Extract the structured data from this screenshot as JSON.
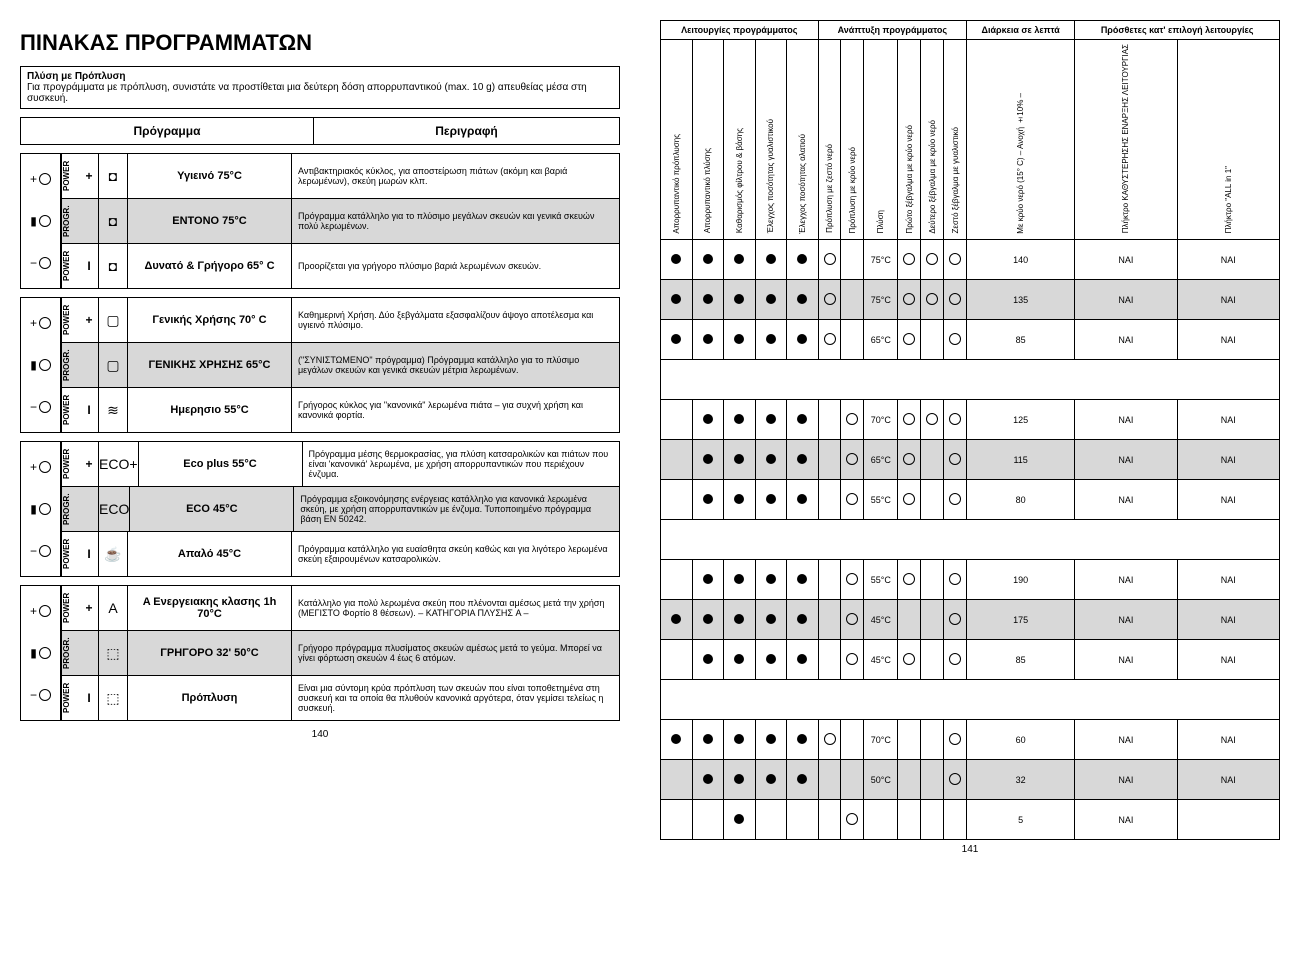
{
  "left": {
    "title": "ΠΙΝΑΚΑΣ  ΠΡΟΓΡΑΜΜΑΤΩΝ",
    "subtitle_bold": "Πλύση με Πρόπλυση",
    "subtitle_rest": "Για προγράμματα με πρόπλυση, συνιστάτε να προστίθεται μια δεύτερη δόση απορρυπαντικού (max. 10 g) απευθείας μέσα στη συσκευή.",
    "header_prog": "Πρόγραμμα",
    "header_desc": "Περιγραφή",
    "groups": [
      {
        "rows": [
          {
            "power": "POWER",
            "sym": "+",
            "icon": "◘",
            "name": "Υγιεινό 75°C",
            "desc": "Αντιβακτηριακός κύκλος, για αποστείρωση πιάτων (ακόμη και βαριά λερωμένων), σκεύη μωρών κλπ.",
            "gray": false
          },
          {
            "power": "PROGR.",
            "sym": "",
            "icon": "◘",
            "name": "ΕΝΤΟΝΟ 75°C",
            "desc": "Πρόγραμμα κατάλληλο για το πλύσιμο μεγάλων σκευών και γενικά σκευών πολύ λερωμένων.",
            "gray": true
          },
          {
            "power": "POWER",
            "sym": "I",
            "icon": "◘",
            "name": "Δυνατό & Γρήγορο 65° C",
            "desc": "Προορίζεται για γρήγορο πλύσιμο βαριά λερωμένων σκευών.",
            "gray": false
          }
        ]
      },
      {
        "rows": [
          {
            "power": "POWER",
            "sym": "+",
            "icon": "▢",
            "name": "Γενικής Χρήσης 70° C",
            "desc": "Καθημερινή Χρήση. Δύο ξεβγάλματα εξασφαλίζουν άψογο αποτέλεσμα και υγιεινό πλύσιμο.",
            "gray": false
          },
          {
            "power": "PROGR.",
            "sym": "",
            "icon": "▢",
            "name": "ΓΕΝΙΚΗΣ ΧΡΗΣΗΣ 65°C",
            "desc": "(\"ΣΥΝΙΣΤΩΜΕΝΟ\" πρόγραμμα) Πρόγραμμα κατάλληλο για το πλύσιμο μεγάλων σκευών και γενικά σκευών μέτρια λερωμένων.",
            "gray": true
          },
          {
            "power": "POWER",
            "sym": "I",
            "icon": "≋",
            "name": "Ημερησιο 55°C",
            "desc": "Γρήγορος κύκλος για \"κανονικά\" λερωμένα πιάτα – για συχνή χρήση και κανονικά φορτία.",
            "gray": false
          }
        ]
      },
      {
        "rows": [
          {
            "power": "POWER",
            "sym": "+",
            "icon": "ECO+",
            "name": "Eco plus 55°C",
            "desc": "Πρόγραμμα μέσης θερμοκρασίας, για πλύση κατσαρολικών και πιάτων που είναι 'κανονικά' λερωμένα, με χρήση απορρυπαντικών που περιέχουν ένζυμα.",
            "gray": false
          },
          {
            "power": "PROGR.",
            "sym": "",
            "icon": "ECO",
            "name": "ECO 45°C",
            "desc": "Πρόγραμμα εξοικονόμησης ενέργειας κατάλληλο για κανονικά λερωμένα σκεύη, με χρήση απορρυπαντικών με ένζυμα. Τυποποιημένο πρόγραμμα βάση EN 50242.",
            "gray": true
          },
          {
            "power": "POWER",
            "sym": "I",
            "icon": "☕",
            "name": "Απαλό 45°C",
            "desc": "Πρόγραμμα κατάλληλο για ευαίσθητα σκεύη καθώς και για λιγότερο λερωμένα σκεύη εξαιρουμένων κατσαρολικών.",
            "gray": false
          }
        ]
      },
      {
        "rows": [
          {
            "power": "POWER",
            "sym": "+",
            "icon": "A",
            "name": "A Ενεργειακης κλασης 1h 70°C",
            "desc": "Κατάλληλο για πολύ λερωμένα σκεύη που πλένονται αμέσως μετά την χρήση (ΜΕΓΙΣΤΟ Φορτίο 8 θέσεων). – ΚΑΤΗΓΟΡΙΑ ΠΛΥΣΗΣ A –",
            "gray": false
          },
          {
            "power": "PROGR.",
            "sym": "",
            "icon": "⬚",
            "name": "ΓΡΗΓΟΡΟ 32' 50°C",
            "desc": "Γρήγορο πρόγραμμα πλυσίματος σκευών αμέσως μετά το γεύμα. Μπορεί να γίνει φόρτωση σκευών 4 έως 6 ατόμων.",
            "gray": true
          },
          {
            "power": "POWER",
            "sym": "I",
            "icon": "⬚",
            "name": "Πρόπλυση",
            "desc": "Είναι μια σύντομη κρύα πρόπλυση των σκευών που είναι τοποθετημένα στη συσκευή και τα οποία θα πλυθούν κανονικά αργότερα, όταν γεμίσει τελείως η συσκευή.",
            "gray": false
          }
        ]
      }
    ],
    "page_num": "140"
  },
  "right": {
    "group_headers": {
      "g1": "Λειτουργίες προγράμματος",
      "g2": "Ανάπτυξη προγράμματος",
      "g3": "Διάρκεια σε λεπτά",
      "g4": "Πρόσθετες κατ' επιλογή λειτουργίες"
    },
    "col_headers": [
      "Απορρυπαντικό πρόπλυσης",
      "Απορρυπαντικό πλύσης",
      "Καθαρισμός φίλτρου & βάσης",
      "Έλεγχος ποσότητας γυαλιστικού",
      "Έλεγχος ποσότητας αλατιού",
      "Πρόπλυση με ζεστό νερό",
      "Πρόπλυση με κρύο νερό",
      "Πλύση",
      "Πρώτο ξέβγαλμα με κρύο νερό",
      "Δεύτερο ξέβγαλμα με κρύο νερό",
      "Ζεστό ξέβγαλμα με γυαλιστικό",
      "Με κρύο νερό (15° C) – Ανοχή ±10% –",
      "Πλήκτρο ΚΑΘΥΣΤΕΡΗΣΗΣ ΕΝΑΡΞΗΣ ΛΕΙΤΟΥΡΓΙΑΣ",
      "Πλήκτρο \"ALL in 1\""
    ],
    "data": [
      {
        "gray": false,
        "c": [
          "f",
          "f",
          "f",
          "f",
          "f",
          "e",
          "",
          "75°C",
          "e",
          "e",
          "e",
          "140",
          "NAI",
          "NAI"
        ]
      },
      {
        "gray": true,
        "c": [
          "f",
          "f",
          "f",
          "f",
          "f",
          "e",
          "",
          "75°C",
          "e",
          "e",
          "e",
          "135",
          "NAI",
          "NAI"
        ]
      },
      {
        "gray": false,
        "c": [
          "f",
          "f",
          "f",
          "f",
          "f",
          "e",
          "",
          "65°C",
          "e",
          "",
          "e",
          "85",
          "NAI",
          "NAI"
        ]
      },
      {
        "gray": false,
        "c": [
          "",
          "f",
          "f",
          "f",
          "f",
          "",
          "e",
          "70°C",
          "e",
          "e",
          "e",
          "125",
          "NAI",
          "NAI"
        ]
      },
      {
        "gray": true,
        "c": [
          "",
          "f",
          "f",
          "f",
          "f",
          "",
          "e",
          "65°C",
          "e",
          "",
          "e",
          "115",
          "NAI",
          "NAI"
        ]
      },
      {
        "gray": false,
        "c": [
          "",
          "f",
          "f",
          "f",
          "f",
          "",
          "e",
          "55°C",
          "e",
          "",
          "e",
          "80",
          "NAI",
          "NAI"
        ]
      },
      {
        "gray": false,
        "c": [
          "",
          "f",
          "f",
          "f",
          "f",
          "",
          "e",
          "55°C",
          "e",
          "",
          "e",
          "190",
          "NAI",
          "NAI"
        ]
      },
      {
        "gray": true,
        "c": [
          "f",
          "f",
          "f",
          "f",
          "f",
          "",
          "e",
          "45°C",
          "",
          "",
          "e",
          "175",
          "NAI",
          "NAI"
        ]
      },
      {
        "gray": false,
        "c": [
          "",
          "f",
          "f",
          "f",
          "f",
          "",
          "e",
          "45°C",
          "e",
          "",
          "e",
          "85",
          "NAI",
          "NAI"
        ]
      },
      {
        "gray": false,
        "c": [
          "f",
          "f",
          "f",
          "f",
          "f",
          "e",
          "",
          "70°C",
          "",
          "",
          "e",
          "60",
          "NAI",
          "NAI"
        ]
      },
      {
        "gray": true,
        "c": [
          "",
          "f",
          "f",
          "f",
          "f",
          "",
          "",
          "50°C",
          "",
          "",
          "e",
          "32",
          "NAI",
          "NAI"
        ]
      },
      {
        "gray": false,
        "c": [
          "",
          "",
          "f",
          "",
          "",
          "",
          "e",
          "",
          "",
          "",
          "",
          "5",
          "NAI",
          ""
        ]
      }
    ],
    "page_num": "141"
  }
}
